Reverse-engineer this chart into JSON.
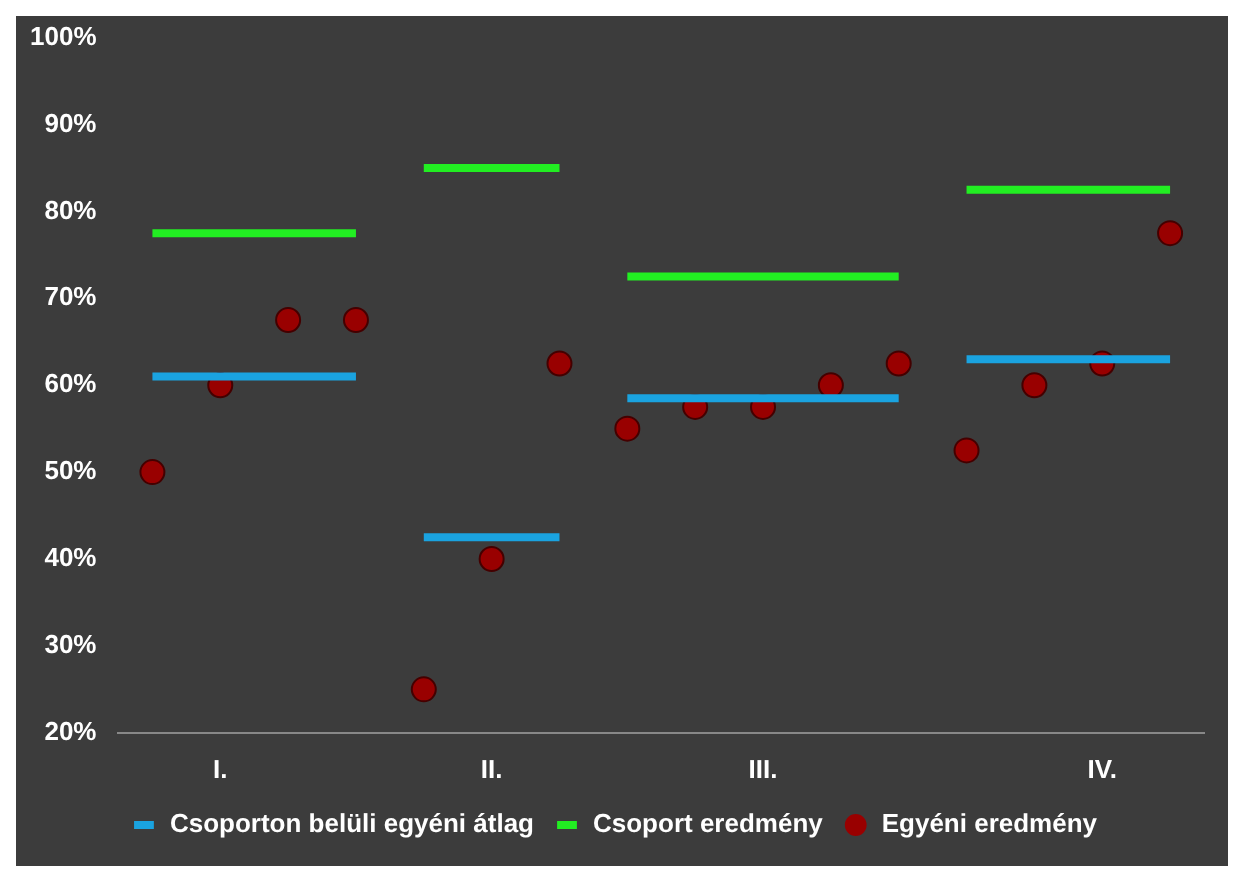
{
  "chart_data": {
    "type": "line",
    "categories": [
      null,
      "I.",
      null,
      null,
      null,
      "II.",
      null,
      null,
      null,
      "III.",
      null,
      null,
      null,
      null,
      "IV.",
      null
    ],
    "ylim": [
      20,
      100
    ],
    "yticks": [
      {
        "value": 20,
        "label": "20%"
      },
      {
        "value": 30,
        "label": "30%"
      },
      {
        "value": 40,
        "label": "40%"
      },
      {
        "value": 50,
        "label": "50%"
      },
      {
        "value": 60,
        "label": "60%"
      },
      {
        "value": 70,
        "label": "70%"
      },
      {
        "value": 80,
        "label": "80%"
      },
      {
        "value": 90,
        "label": "90%"
      },
      {
        "value": 100,
        "label": "100%"
      }
    ],
    "grid": false,
    "legend": "bottom",
    "series": [
      {
        "name": "Csoporton belüli egyéni átlag",
        "marker": "none",
        "color": "#1aa3e0",
        "values": [
          61,
          61,
          61,
          61,
          null,
          null,
          null,
          null,
          null,
          null,
          null,
          null,
          null,
          null,
          null,
          null
        ]
      },
      {
        "marker": "none",
        "color": "#1aa3e0",
        "values": [
          null,
          null,
          null,
          null,
          42.5,
          42.5,
          42.5,
          null,
          null,
          null,
          null,
          null,
          null,
          null,
          null,
          null
        ]
      },
      {
        "marker": "none",
        "color": "#1aa3e0",
        "values": [
          null,
          null,
          null,
          null,
          null,
          null,
          null,
          58.5,
          58.5,
          58.5,
          58.5,
          58.5,
          null,
          null,
          null,
          null
        ]
      },
      {
        "marker": "none",
        "color": "#1aa3e0",
        "values": [
          null,
          null,
          null,
          null,
          null,
          null,
          null,
          null,
          null,
          null,
          null,
          null,
          63,
          63,
          63,
          63
        ]
      },
      {
        "name": "Csoport eredmény",
        "marker": "none",
        "color": "#22ee22",
        "values": [
          77.5,
          77.5,
          77.5,
          77.5,
          null,
          null,
          null,
          null,
          null,
          null,
          null,
          null,
          null,
          null,
          null,
          null
        ]
      },
      {
        "marker": "none",
        "color": "#22ee22",
        "values": [
          null,
          null,
          null,
          null,
          85,
          85,
          85,
          null,
          null,
          null,
          null,
          null,
          null,
          null,
          null,
          null
        ]
      },
      {
        "marker": "none",
        "color": "#22ee22",
        "values": [
          null,
          null,
          null,
          null,
          null,
          null,
          null,
          72.5,
          72.5,
          72.5,
          72.5,
          72.5,
          null,
          null,
          null,
          null
        ]
      },
      {
        "marker": "none",
        "color": "#22ee22",
        "values": [
          null,
          null,
          null,
          null,
          null,
          null,
          null,
          null,
          null,
          null,
          null,
          null,
          82.5,
          82.5,
          82.5,
          82.5
        ]
      },
      {
        "name": "Egyéni eredmény",
        "type": "scatter",
        "marker": "circle",
        "color": "#990000",
        "values": [
          50,
          60,
          67.5,
          67.5,
          25,
          40,
          62.5,
          55,
          57.5,
          57.5,
          60,
          62.5,
          52.5,
          60,
          62.5,
          77.5
        ]
      }
    ]
  }
}
